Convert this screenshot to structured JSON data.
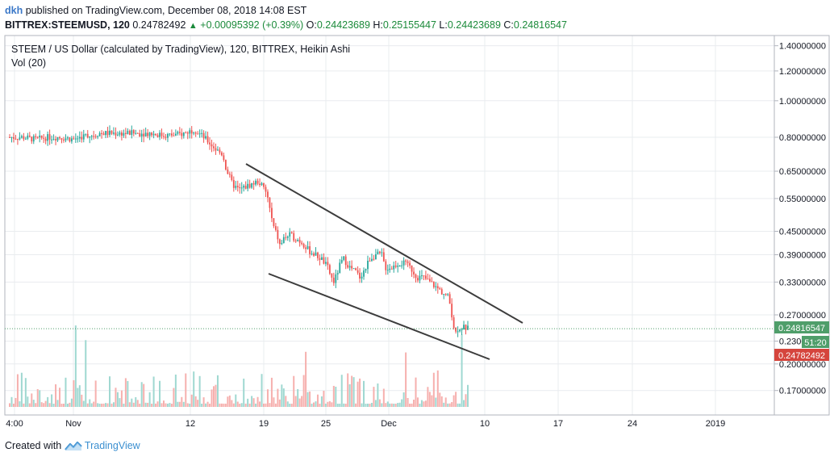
{
  "header": {
    "user": "dkh",
    "published": "published on TradingView.com, December 08, 2018 14:08 EST",
    "symbol": "BITTREX:STEEMUSD, 120",
    "last": "0.24782492",
    "change": "+0.00095392 (+0.39%)",
    "o_label": "O:",
    "o_value": "0.24423689",
    "h_label": "H:",
    "h_value": "0.25155447",
    "l_label": "L:",
    "l_value": "0.24423689",
    "c_label": "C:",
    "c_value": "0.24816547"
  },
  "legend": {
    "title": "STEEM / US Dollar (calculated by TradingView), 120, BITTREX, Heikin Ashi",
    "volume": "Vol (20)"
  },
  "footer": {
    "created_with": "Created with",
    "brand": "TradingView"
  },
  "colors": {
    "up": "#26a69a",
    "down": "#ef5350",
    "up_vol": "#9fd8d1",
    "down_vol": "#f6b0ae",
    "grid": "#e9ecef",
    "last_price_tag": "#4f9e6a",
    "alt_price_tag": "#d5453d",
    "trendline": "#3c3c3c"
  },
  "chart_data": {
    "type": "candlestick",
    "scale": "log",
    "y_ticks": [
      "1.40000000",
      "1.20000000",
      "1.00000000",
      "0.80000000",
      "0.65000000",
      "0.55000000",
      "0.45000000",
      "0.39000000",
      "0.33000000",
      "0.27000000",
      "0.23000000",
      "0.20000000",
      "0.17000000"
    ],
    "y_tick_values": [
      1.4,
      1.2,
      1.0,
      0.8,
      0.65,
      0.55,
      0.45,
      0.39,
      0.33,
      0.27,
      0.23,
      0.2,
      0.17
    ],
    "x_ticks": [
      "4:00",
      "Nov",
      "12",
      "19",
      "25",
      "Dec",
      "10",
      "17",
      "24",
      "2019"
    ],
    "price_labels": {
      "last": "0.24816547",
      "countdown": "51:20",
      "alt": "0.24782492"
    },
    "last_price": 0.24816547,
    "price_path": [
      [
        0,
        0.8
      ],
      [
        4,
        0.8
      ],
      [
        8,
        0.79
      ],
      [
        12,
        0.8
      ],
      [
        16,
        0.8
      ],
      [
        20,
        0.79
      ],
      [
        22,
        0.8
      ],
      [
        24,
        0.81
      ],
      [
        26,
        0.81
      ],
      [
        28,
        0.82
      ],
      [
        32,
        0.82
      ],
      [
        36,
        0.82
      ],
      [
        40,
        0.82
      ],
      [
        44,
        0.82
      ],
      [
        48,
        0.81
      ],
      [
        52,
        0.81
      ],
      [
        55,
        0.82
      ],
      [
        58,
        0.84
      ],
      [
        61,
        0.8
      ],
      [
        63,
        0.77
      ],
      [
        65,
        0.74
      ],
      [
        67,
        0.72
      ],
      [
        68,
        0.66
      ],
      [
        70,
        0.6
      ],
      [
        72,
        0.58
      ],
      [
        74,
        0.59
      ],
      [
        76,
        0.6
      ],
      [
        78,
        0.61
      ],
      [
        79,
        0.6
      ],
      [
        81,
        0.56
      ],
      [
        82,
        0.5
      ],
      [
        83,
        0.46
      ],
      [
        84,
        0.44
      ],
      [
        85,
        0.41
      ],
      [
        86,
        0.43
      ],
      [
        88,
        0.44
      ],
      [
        90,
        0.43
      ],
      [
        92,
        0.42
      ],
      [
        94,
        0.4
      ],
      [
        96,
        0.39
      ],
      [
        98,
        0.38
      ],
      [
        100,
        0.36
      ],
      [
        101,
        0.34
      ],
      [
        102,
        0.33
      ],
      [
        104,
        0.37
      ],
      [
        105,
        0.38
      ],
      [
        107,
        0.36
      ],
      [
        109,
        0.35
      ],
      [
        110,
        0.34
      ],
      [
        112,
        0.36
      ],
      [
        113,
        0.38
      ],
      [
        115,
        0.39
      ],
      [
        117,
        0.39
      ],
      [
        118,
        0.36
      ],
      [
        120,
        0.36
      ],
      [
        122,
        0.37
      ],
      [
        124,
        0.37
      ],
      [
        126,
        0.36
      ],
      [
        128,
        0.34
      ],
      [
        130,
        0.34
      ],
      [
        132,
        0.33
      ],
      [
        134,
        0.32
      ],
      [
        136,
        0.31
      ],
      [
        138,
        0.3
      ],
      [
        139,
        0.27
      ],
      [
        140,
        0.24
      ],
      [
        141,
        0.25
      ],
      [
        142,
        0.25
      ],
      [
        143,
        0.25
      ],
      [
        144,
        0.248
      ]
    ],
    "volume_bars": 230
  }
}
